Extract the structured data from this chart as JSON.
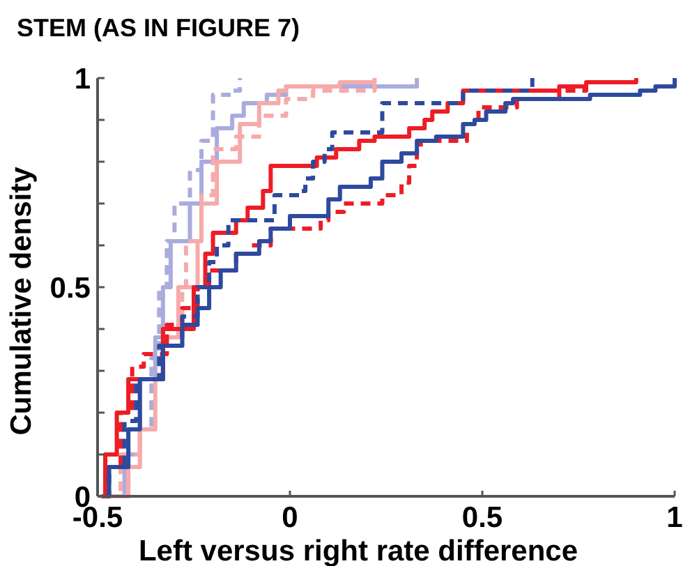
{
  "chart_data": {
    "type": "step",
    "title": "STEM (AS IN FIGURE 7)",
    "xlabel": "Left versus right rate difference",
    "ylabel": "Cumulative density",
    "xlim": [
      -0.5,
      1
    ],
    "xticks": [
      -0.5,
      0,
      0.5,
      1
    ],
    "ylim": [
      0,
      1
    ],
    "yticks": [
      0,
      {
        "value": 0.1,
        "label": null
      },
      {
        "value": 0.2,
        "label": null
      },
      {
        "value": 0.3,
        "label": null
      },
      {
        "value": 0.4,
        "label": null
      },
      0.5,
      {
        "value": 0.6,
        "label": null
      },
      {
        "value": 0.7,
        "label": null
      },
      {
        "value": 0.8,
        "label": null
      },
      {
        "value": 0.9,
        "label": null
      },
      1
    ],
    "grid": false,
    "marker": "none",
    "series": [
      {
        "color": "#a9acdc",
        "line_style": "solid",
        "x": [
          -0.46,
          -0.43,
          -0.39,
          -0.35,
          -0.33,
          -0.31,
          -0.26,
          -0.23,
          -0.19,
          -0.15,
          -0.12,
          -0.06,
          -0.01,
          0.33
        ],
        "values": [
          0,
          0.1,
          0.28,
          0.38,
          0.5,
          0.61,
          0.7,
          0.8,
          0.88,
          0.91,
          0.94,
          0.96,
          0.98,
          1.0
        ]
      },
      {
        "color": "#a9acdc",
        "line_style": "dashed",
        "x": [
          -0.44,
          -0.42,
          -0.36,
          -0.34,
          -0.32,
          -0.3,
          -0.26,
          -0.23,
          -0.2,
          -0.15,
          -0.13
        ],
        "values": [
          0,
          0.16,
          0.33,
          0.5,
          0.61,
          0.7,
          0.78,
          0.85,
          0.96,
          0.97,
          1.0
        ]
      },
      {
        "color": "#f7aaaa",
        "line_style": "solid",
        "x": [
          -0.45,
          -0.42,
          -0.39,
          -0.35,
          -0.33,
          -0.29,
          -0.24,
          -0.23,
          -0.19,
          -0.13,
          -0.08,
          -0.03,
          -0.01,
          0.13,
          0.22
        ],
        "values": [
          0,
          0.07,
          0.16,
          0.28,
          0.38,
          0.5,
          0.61,
          0.7,
          0.8,
          0.89,
          0.94,
          0.97,
          0.98,
          0.99,
          1.0
        ]
      },
      {
        "color": "#f7aaaa",
        "line_style": "dashed",
        "x": [
          -0.47,
          -0.44,
          -0.39,
          -0.33,
          -0.28,
          -0.27,
          -0.23,
          -0.2,
          -0.14,
          -0.08,
          -0.01,
          0.06,
          0.22
        ],
        "values": [
          0,
          0.1,
          0.28,
          0.36,
          0.5,
          0.61,
          0.72,
          0.83,
          0.86,
          0.91,
          0.95,
          0.97,
          1.0
        ]
      },
      {
        "color": "#ee1c25",
        "line_style": "solid",
        "x": [
          -0.49,
          -0.48,
          -0.45,
          -0.42,
          -0.33,
          -0.25,
          -0.22,
          -0.2,
          -0.14,
          -0.11,
          -0.07,
          -0.05,
          0.07,
          0.12,
          0.18,
          0.22,
          0.31,
          0.35,
          0.37,
          0.41,
          0.45,
          0.7,
          0.77,
          0.9
        ],
        "values": [
          0,
          0.1,
          0.2,
          0.28,
          0.4,
          0.5,
          0.58,
          0.63,
          0.66,
          0.69,
          0.73,
          0.79,
          0.81,
          0.83,
          0.85,
          0.86,
          0.88,
          0.9,
          0.92,
          0.94,
          0.97,
          0.98,
          0.99,
          1.0
        ]
      },
      {
        "color": "#ee1c25",
        "line_style": "dashed",
        "x": [
          -0.49,
          -0.48,
          -0.44,
          -0.41,
          -0.38,
          -0.32,
          -0.28,
          -0.24,
          -0.21,
          -0.14,
          -0.1,
          -0.05,
          0.08,
          0.1,
          0.14,
          0.24,
          0.29,
          0.31,
          0.33,
          0.34,
          0.46,
          0.49,
          0.59,
          0.7,
          0.77
        ],
        "values": [
          0,
          0.07,
          0.2,
          0.31,
          0.34,
          0.41,
          0.45,
          0.5,
          0.54,
          0.58,
          0.6,
          0.64,
          0.66,
          0.68,
          0.7,
          0.72,
          0.75,
          0.79,
          0.83,
          0.85,
          0.89,
          0.93,
          0.95,
          0.97,
          1.0
        ]
      },
      {
        "color": "#2e4a9e",
        "line_style": "solid",
        "x": [
          -0.48,
          -0.47,
          -0.42,
          -0.39,
          -0.33,
          -0.28,
          -0.24,
          -0.21,
          -0.18,
          -0.14,
          -0.08,
          -0.05,
          0.0,
          0.1,
          0.13,
          0.21,
          0.24,
          0.29,
          0.33,
          0.38,
          0.45,
          0.48,
          0.51,
          0.56,
          0.58,
          0.78,
          0.91,
          0.95,
          1.0
        ],
        "values": [
          0,
          0.07,
          0.16,
          0.28,
          0.36,
          0.41,
          0.45,
          0.5,
          0.54,
          0.58,
          0.61,
          0.64,
          0.67,
          0.71,
          0.74,
          0.76,
          0.8,
          0.82,
          0.85,
          0.86,
          0.89,
          0.9,
          0.92,
          0.94,
          0.95,
          0.96,
          0.97,
          0.98,
          1.0
        ]
      },
      {
        "color": "#2e4a9e",
        "line_style": "dashed",
        "x": [
          -0.48,
          -0.47,
          -0.43,
          -0.4,
          -0.34,
          -0.28,
          -0.24,
          -0.21,
          -0.19,
          -0.16,
          -0.04,
          0.03,
          0.04,
          0.06,
          0.09,
          0.11,
          0.24,
          0.45,
          0.63
        ],
        "values": [
          0,
          0.07,
          0.18,
          0.28,
          0.36,
          0.43,
          0.5,
          0.56,
          0.6,
          0.66,
          0.72,
          0.73,
          0.76,
          0.8,
          0.83,
          0.87,
          0.94,
          0.97,
          1.0
        ]
      }
    ]
  }
}
